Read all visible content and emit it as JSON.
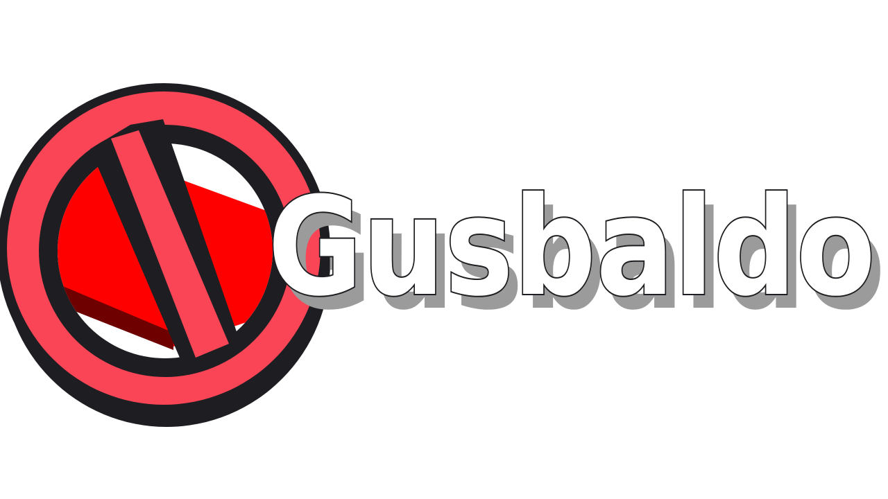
{
  "logo": {
    "wordmark": "Gusbaldo",
    "colors": {
      "ring": "#f94556",
      "ring_shadow": "#9e1f2a",
      "outline": "#1e1e22",
      "inner_fill": "#ff0000",
      "inner_shadow": "#6e0000",
      "text": "#ffffff",
      "text_shadow": "#9b9b9b",
      "background": "#ffffff"
    },
    "icon": "prohibited-sign-icon"
  }
}
